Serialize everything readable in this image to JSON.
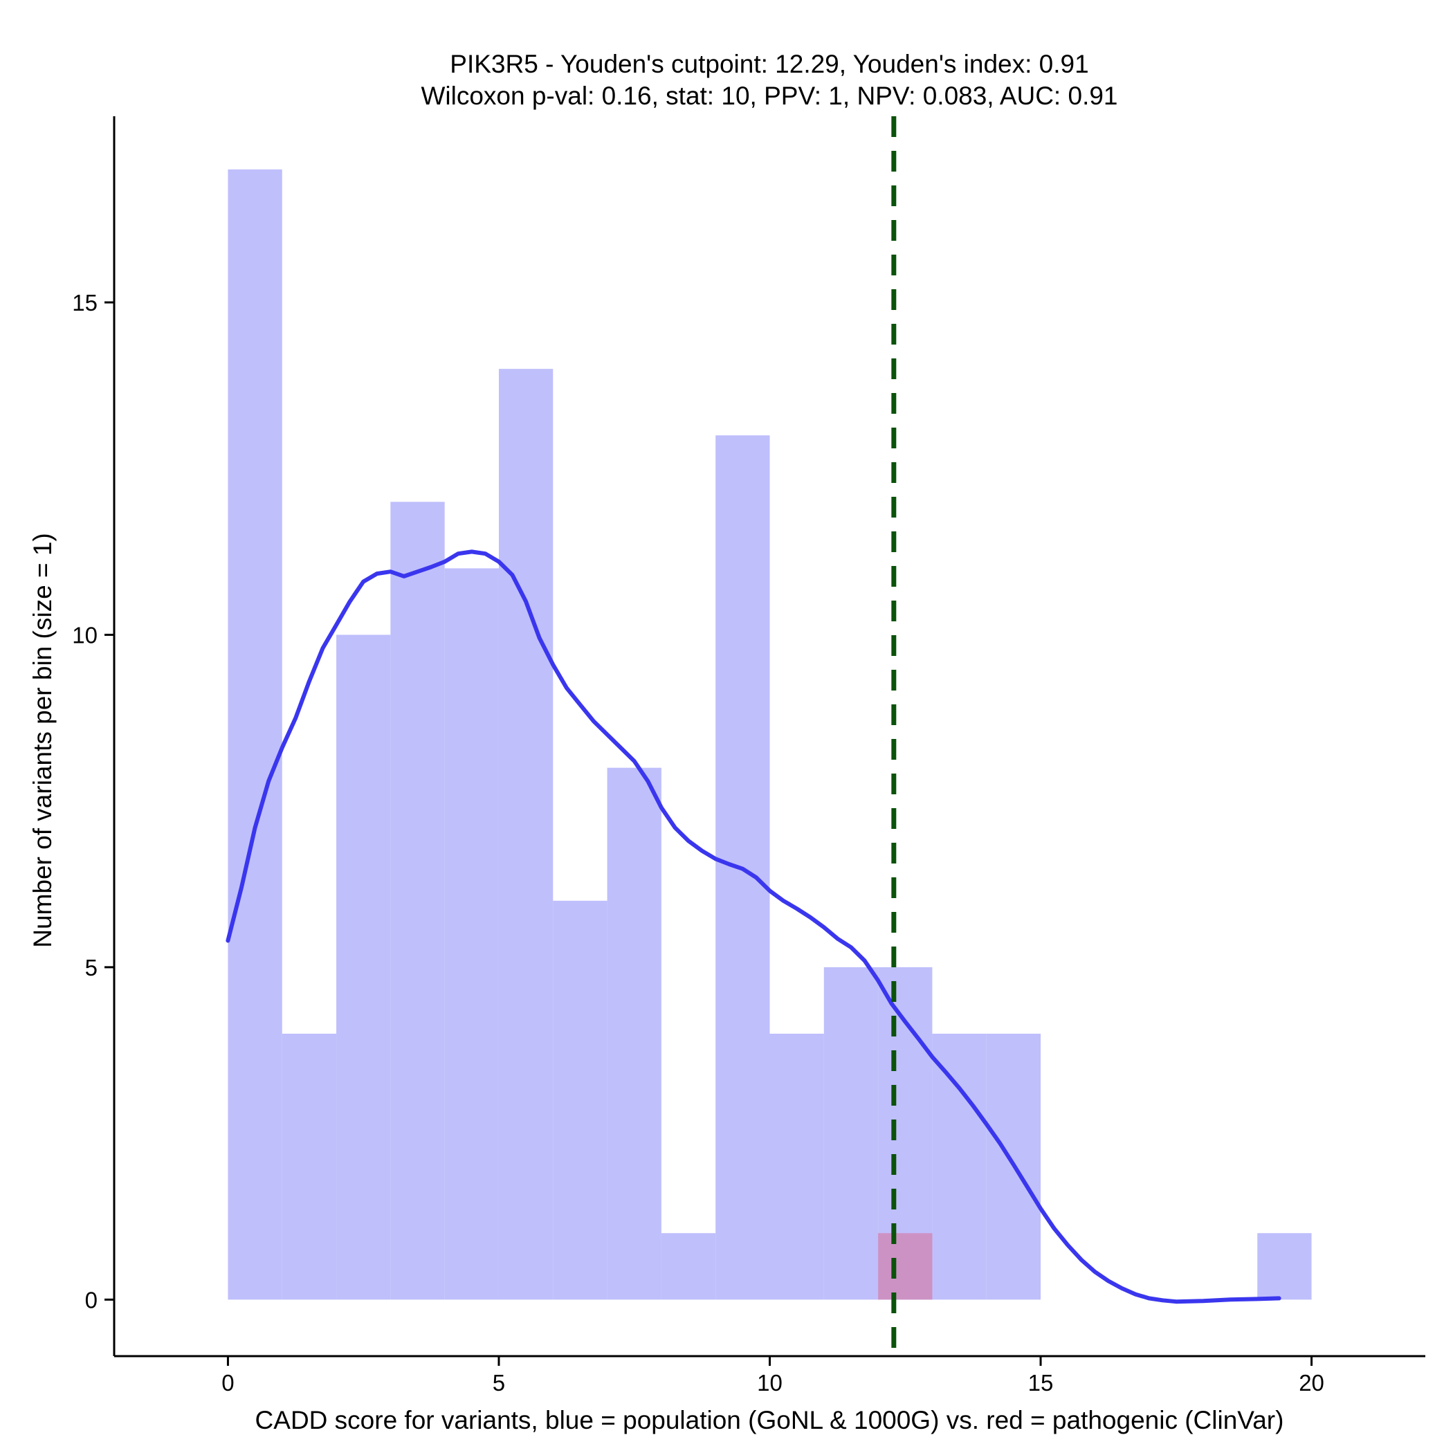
{
  "chart_data": {
    "type": "bar",
    "title_lines": [
      "PIK3R5 - Youden's cutpoint: 12.29, Youden's index: 0.91",
      "Wilcoxon p-val: 0.16, stat: 10, PPV: 1, NPV: 0.083, AUC: 0.91"
    ],
    "xlabel": "CADD score for variants, blue = population (GoNL & 1000G) vs. red = pathogenic (ClinVar)",
    "ylabel": "Number of variants per bin (size = 1)",
    "xlim": [
      -2.1,
      22.1
    ],
    "ylim": [
      -0.85,
      17.8
    ],
    "x_ticks": [
      0,
      5,
      10,
      15,
      20
    ],
    "y_ticks": [
      0,
      5,
      10,
      15
    ],
    "bin_width": 1,
    "series": [
      {
        "name": "population (GoNL & 1000G)",
        "color": "#bfbffc",
        "bins": [
          {
            "x0": 0,
            "x1": 1,
            "count": 17
          },
          {
            "x0": 1,
            "x1": 2,
            "count": 4
          },
          {
            "x0": 2,
            "x1": 3,
            "count": 10
          },
          {
            "x0": 3,
            "x1": 4,
            "count": 12
          },
          {
            "x0": 4,
            "x1": 5,
            "count": 11
          },
          {
            "x0": 5,
            "x1": 6,
            "count": 14
          },
          {
            "x0": 6,
            "x1": 7,
            "count": 6
          },
          {
            "x0": 7,
            "x1": 8,
            "count": 8
          },
          {
            "x0": 8,
            "x1": 9,
            "count": 1
          },
          {
            "x0": 9,
            "x1": 10,
            "count": 13
          },
          {
            "x0": 10,
            "x1": 11,
            "count": 4
          },
          {
            "x0": 11,
            "x1": 12,
            "count": 5
          },
          {
            "x0": 12,
            "x1": 13,
            "count": 5
          },
          {
            "x0": 13,
            "x1": 14,
            "count": 4
          },
          {
            "x0": 14,
            "x1": 15,
            "count": 4
          },
          {
            "x0": 19,
            "x1": 20,
            "count": 1
          }
        ]
      },
      {
        "name": "pathogenic (ClinVar)",
        "color": "#cd92c4",
        "bins": [
          {
            "x0": 12,
            "x1": 13,
            "count": 1
          }
        ]
      }
    ],
    "density_curve": {
      "color": "#3a36ee",
      "points": [
        [
          0,
          5.4
        ],
        [
          0.25,
          6.2
        ],
        [
          0.5,
          7.1
        ],
        [
          0.75,
          7.8
        ],
        [
          1.0,
          8.3
        ],
        [
          1.25,
          8.75
        ],
        [
          1.5,
          9.3
        ],
        [
          1.75,
          9.8
        ],
        [
          2.0,
          10.15
        ],
        [
          2.25,
          10.5
        ],
        [
          2.5,
          10.8
        ],
        [
          2.75,
          10.92
        ],
        [
          3.0,
          10.95
        ],
        [
          3.25,
          10.88
        ],
        [
          3.5,
          10.95
        ],
        [
          3.75,
          11.02
        ],
        [
          4.0,
          11.1
        ],
        [
          4.25,
          11.22
        ],
        [
          4.5,
          11.25
        ],
        [
          4.75,
          11.22
        ],
        [
          5.0,
          11.1
        ],
        [
          5.25,
          10.9
        ],
        [
          5.5,
          10.5
        ],
        [
          5.75,
          9.95
        ],
        [
          6.0,
          9.55
        ],
        [
          6.25,
          9.2
        ],
        [
          6.5,
          8.95
        ],
        [
          6.75,
          8.7
        ],
        [
          7.0,
          8.5
        ],
        [
          7.25,
          8.3
        ],
        [
          7.5,
          8.1
        ],
        [
          7.75,
          7.8
        ],
        [
          8.0,
          7.4
        ],
        [
          8.25,
          7.1
        ],
        [
          8.5,
          6.9
        ],
        [
          8.75,
          6.75
        ],
        [
          9.0,
          6.63
        ],
        [
          9.25,
          6.55
        ],
        [
          9.5,
          6.48
        ],
        [
          9.75,
          6.35
        ],
        [
          10.0,
          6.15
        ],
        [
          10.25,
          6.0
        ],
        [
          10.5,
          5.88
        ],
        [
          10.75,
          5.75
        ],
        [
          11.0,
          5.6
        ],
        [
          11.25,
          5.43
        ],
        [
          11.5,
          5.3
        ],
        [
          11.75,
          5.1
        ],
        [
          12.0,
          4.8
        ],
        [
          12.25,
          4.45
        ],
        [
          12.5,
          4.18
        ],
        [
          12.75,
          3.92
        ],
        [
          13.0,
          3.65
        ],
        [
          13.25,
          3.42
        ],
        [
          13.5,
          3.18
        ],
        [
          13.75,
          2.92
        ],
        [
          14.0,
          2.64
        ],
        [
          14.25,
          2.35
        ],
        [
          14.5,
          2.03
        ],
        [
          14.75,
          1.7
        ],
        [
          15.0,
          1.37
        ],
        [
          15.25,
          1.07
        ],
        [
          15.5,
          0.82
        ],
        [
          15.75,
          0.6
        ],
        [
          16.0,
          0.42
        ],
        [
          16.25,
          0.28
        ],
        [
          16.5,
          0.17
        ],
        [
          16.75,
          0.08
        ],
        [
          17.0,
          0.02
        ],
        [
          17.25,
          -0.01
        ],
        [
          17.5,
          -0.03
        ],
        [
          18.0,
          -0.02
        ],
        [
          18.5,
          0
        ],
        [
          19.0,
          0.01
        ],
        [
          19.4,
          0.02
        ]
      ]
    },
    "cutpoint": {
      "x": 12.29,
      "color": "#0b520b",
      "style": "dashed"
    },
    "grid": false,
    "legend": "none"
  }
}
